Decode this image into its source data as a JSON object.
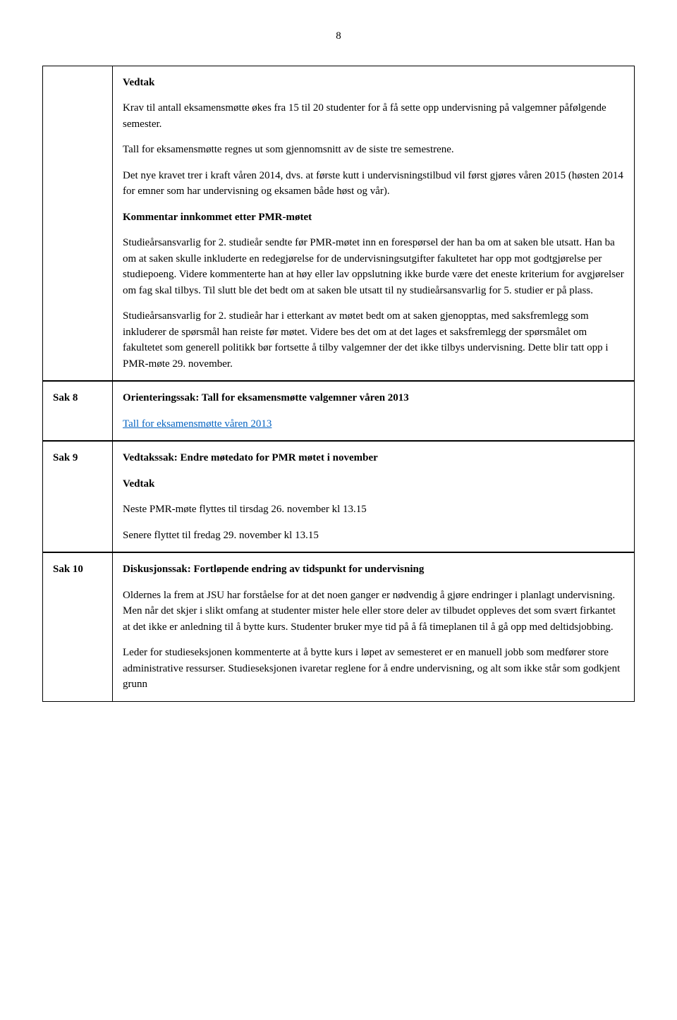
{
  "page_number": "8",
  "block1": {
    "vedtak_heading": "Vedtak",
    "p1": "Krav til antall eksamensmøtte økes fra 15 til 20 studenter for å få sette opp undervisning på valgemner påfølgende semester.",
    "p2": "Tall for eksamensmøtte regnes ut som gjennomsnitt av de siste tre semestrene.",
    "p3": "Det nye kravet trer i kraft våren 2014, dvs. at første kutt i undervisningstilbud vil først gjøres våren 2015 (høsten 2014 for emner som har undervisning og eksamen både høst og vår).",
    "kommentar_heading": "Kommentar innkommet etter PMR-møtet",
    "p4": "Studieårsansvarlig for 2. studieår sendte før PMR-møtet inn en forespørsel der han ba om at saken ble utsatt. Han ba om at saken skulle inkluderte en redegjørelse for de undervisningsutgifter fakultetet har opp mot godtgjørelse per studiepoeng. Videre kommenterte han at høy eller lav oppslutning ikke burde være det eneste kriterium for avgjørelser om fag skal tilbys. Til slutt ble det bedt om at saken ble utsatt til ny studieårsansvarlig for 5. studier er på plass.",
    "p5": "Studieårsansvarlig for 2. studieår har i etterkant av møtet bedt om at saken gjenopptas, med saksfremlegg som inkluderer de spørsmål han reiste før møtet. Videre bes det om at det lages et saksfremlegg der spørsmålet om fakultetet som generell politikk bør fortsette å tilby valgemner der det ikke tilbys undervisning. Dette blir tatt opp i PMR-møte 29. november."
  },
  "sak8": {
    "label": "Sak 8",
    "heading": "Orienteringssak: Tall for eksamensmøtte valgemner våren 2013",
    "link_text": "Tall for eksamensmøtte våren 2013"
  },
  "sak9": {
    "label": "Sak 9",
    "heading": "Vedtakssak: Endre møtedato for PMR møtet i november",
    "vedtak_heading": "Vedtak",
    "p1": "Neste PMR-møte flyttes til tirsdag 26. november kl 13.15",
    "p2": "Senere flyttet til fredag 29. november kl 13.15"
  },
  "sak10": {
    "label": "Sak 10",
    "heading": "Diskusjonssak: Fortløpende endring av tidspunkt for undervisning",
    "p1": "Oldernes la frem at JSU har forståelse for at det noen ganger er nødvendig å gjøre endringer i planlagt undervisning. Men når det skjer i slikt omfang at studenter mister hele eller store deler av tilbudet oppleves det som svært firkantet at det ikke er anledning til å bytte kurs. Studenter bruker mye tid på å få timeplanen til å gå opp med deltidsjobbing.",
    "p2": "Leder for studieseksjonen kommenterte at å bytte kurs i løpet av semesteret er en manuell jobb som medfører store administrative ressurser. Studieseksjonen ivaretar reglene for å endre undervisning, og alt som ikke står som godkjent grunn"
  }
}
